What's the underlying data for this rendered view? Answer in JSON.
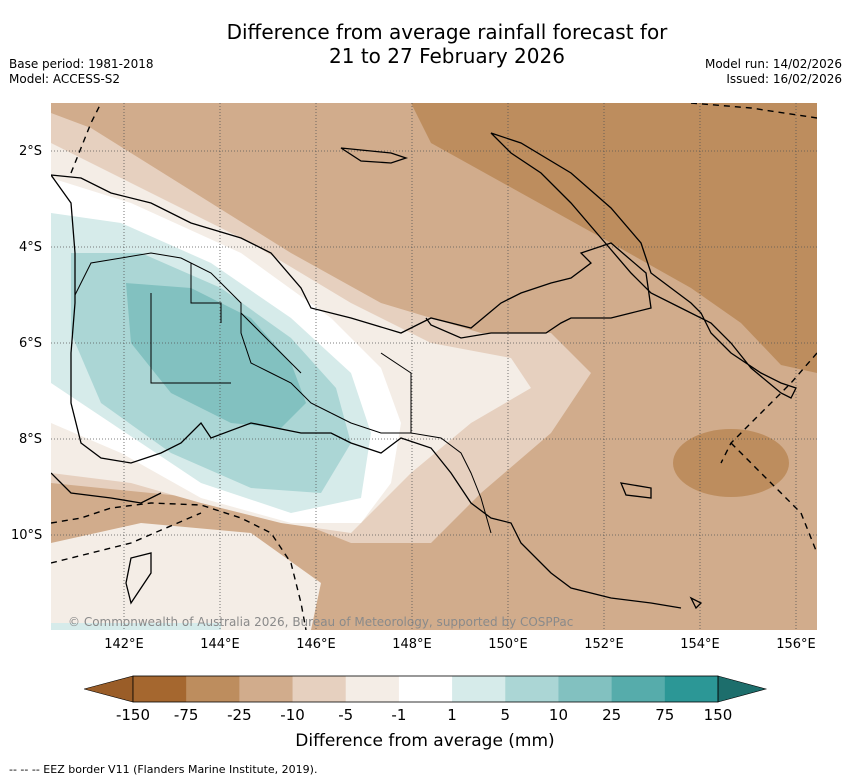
{
  "title": {
    "line1": "Difference from average rainfall forecast for",
    "line2": "21 to 27 February 2026"
  },
  "meta": {
    "base_period": "Base period: 1981-2018",
    "model": "Model: ACCESS-S2",
    "model_run": "Model run: 14/02/2026",
    "issued": "Issued: 16/02/2026"
  },
  "map": {
    "lat_labels": [
      "2°S",
      "4°S",
      "6°S",
      "8°S",
      "10°S"
    ],
    "lon_labels": [
      "142°E",
      "144°E",
      "146°E",
      "148°E",
      "150°E",
      "152°E",
      "154°E",
      "156°E"
    ],
    "copyright": "© Commonwealth of Australia 2026, Bureau of Meteorology, supported by COSPPac"
  },
  "colorbar": {
    "ticks": [
      "-150",
      "-75",
      "-25",
      "-10",
      "-5",
      "-1",
      "1",
      "5",
      "10",
      "25",
      "75",
      "150"
    ],
    "colors": [
      "#a5672f",
      "#bd8d5e",
      "#d1ac8c",
      "#e6d0bf",
      "#f4ede6",
      "#ffffff",
      "#d6ebea",
      "#abd6d5",
      "#82c1c0",
      "#56acab",
      "#2c9796",
      "#1d6e6c"
    ],
    "label": "Difference from average (mm)"
  },
  "footer": "--  --  -- EEZ border V11 (Flanders Marine Institute, 2019)."
}
